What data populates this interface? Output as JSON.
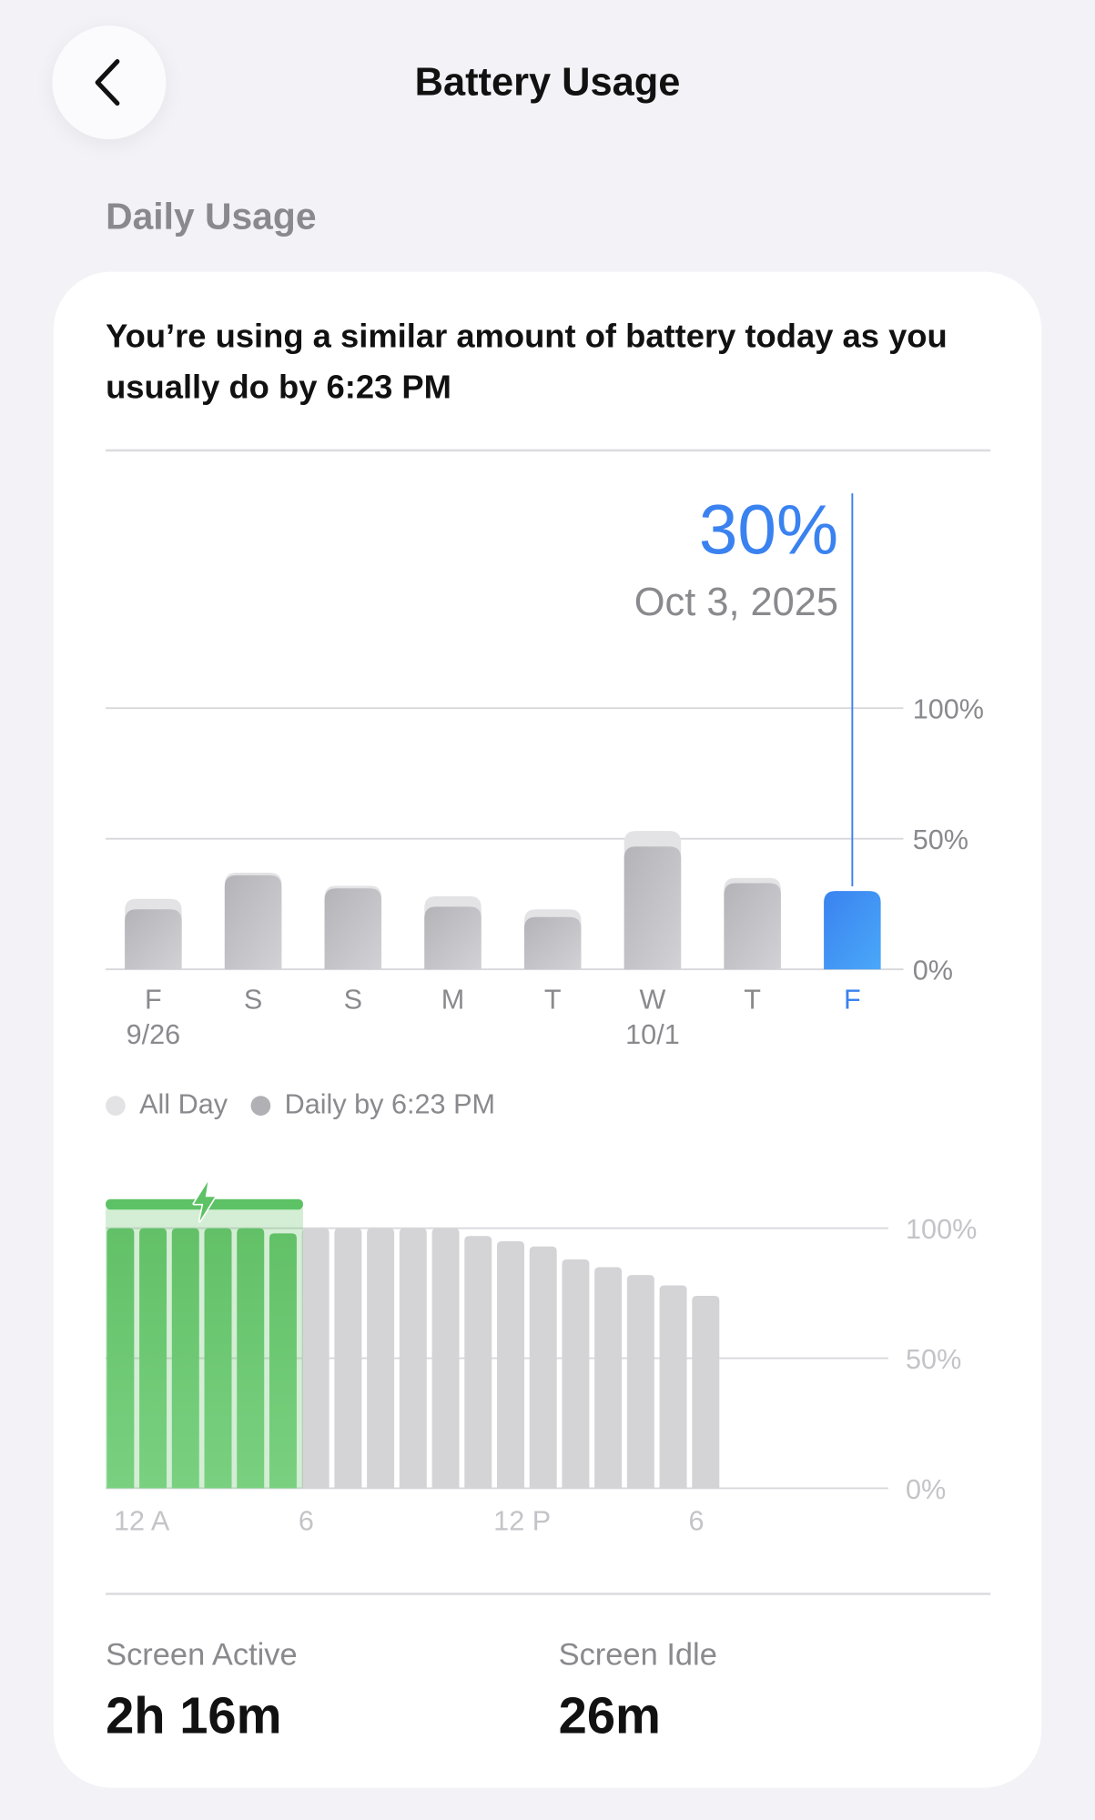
{
  "header": {
    "title": "Battery Usage",
    "back_icon": "chevron-left-icon"
  },
  "section_title": "Daily Usage",
  "card": {
    "headline": "You’re using a similar amount of battery today as you usually do by 6:23 PM",
    "selected": {
      "value": "30%",
      "date": "Oct 3, 2025"
    },
    "legend": [
      {
        "label": "All Day",
        "color": "#e3e3e6"
      },
      {
        "label": "Daily by 6:23 PM",
        "color": "#b0b0b5"
      }
    ],
    "stats": [
      {
        "label": "Screen Active",
        "value": "2h 16m"
      },
      {
        "label": "Screen Idle",
        "value": "26m"
      }
    ]
  },
  "colors": {
    "accent": "#3a82f0",
    "charging": "#5dc265",
    "bar": "#b9b9be",
    "hourly_bar": "#d4d4d7"
  },
  "chart_data": [
    {
      "type": "bar",
      "categories": [
        "F",
        "S",
        "S",
        "M",
        "T",
        "W",
        "T",
        "F"
      ],
      "sublabels": [
        "9/26",
        "",
        "",
        "",
        "",
        "10/1",
        "",
        ""
      ],
      "series": [
        {
          "name": "All Day",
          "values": [
            27,
            37,
            32,
            28,
            23,
            53,
            35,
            30
          ]
        },
        {
          "name": "Daily by 6:23 PM",
          "values": [
            23,
            36,
            31,
            24,
            20,
            47,
            33,
            30
          ]
        }
      ],
      "selected_index": 7,
      "yticks": [
        "0%",
        "50%",
        "100%"
      ],
      "ylim": [
        0,
        100
      ],
      "grid": true,
      "legend": "bottom-left"
    },
    {
      "type": "bar",
      "title": "",
      "xticks": [
        {
          "hour": 0,
          "label": "12 A"
        },
        {
          "hour": 6,
          "label": "6"
        },
        {
          "hour": 12,
          "label": "12 P"
        },
        {
          "hour": 18,
          "label": "6"
        }
      ],
      "values": [
        100,
        100,
        100,
        100,
        100,
        98,
        100,
        100,
        100,
        100,
        100,
        97,
        95,
        93,
        88,
        85,
        82,
        78,
        74
      ],
      "charging_hours": [
        0,
        6
      ],
      "yticks": [
        "0%",
        "50%",
        "100%"
      ],
      "ylim": [
        0,
        100
      ],
      "grid": true
    }
  ]
}
